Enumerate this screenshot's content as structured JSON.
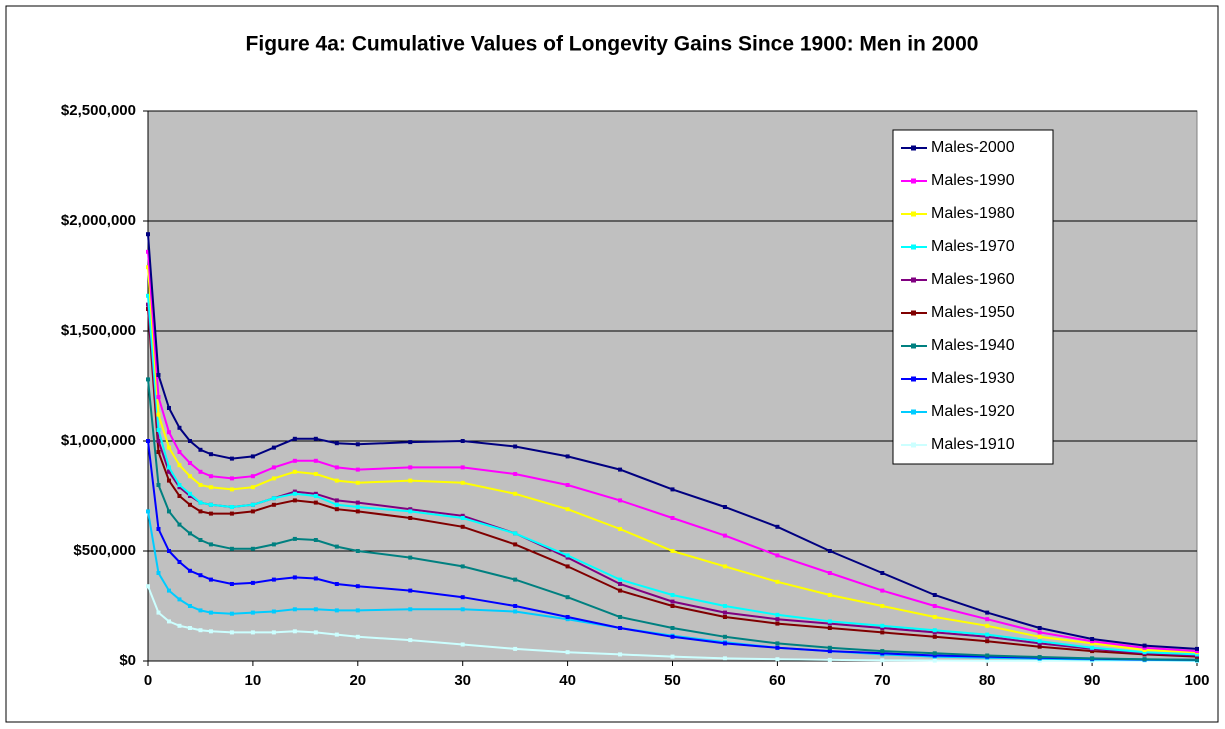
{
  "chart_data": {
    "type": "line",
    "title": "Figure 4a: Cumulative Values of Longevity Gains Since 1900: Men in 2000",
    "x": [
      0,
      1,
      2,
      3,
      4,
      5,
      6,
      8,
      10,
      12,
      14,
      16,
      18,
      20,
      25,
      30,
      35,
      40,
      45,
      50,
      55,
      60,
      65,
      70,
      75,
      80,
      85,
      90,
      95,
      100
    ],
    "xlim": [
      0,
      100
    ],
    "xticks": [
      0,
      10,
      20,
      30,
      40,
      50,
      60,
      70,
      80,
      90,
      100
    ],
    "ylim": [
      0,
      2500000
    ],
    "yticks": [
      {
        "value": 0,
        "label": "$0"
      },
      {
        "value": 500000,
        "label": "$500,000"
      },
      {
        "value": 1000000,
        "label": "$1,000,000"
      },
      {
        "value": 1500000,
        "label": "$1,500,000"
      },
      {
        "value": 2000000,
        "label": "$2,000,000"
      },
      {
        "value": 2500000,
        "label": "$2,500,000"
      }
    ],
    "grid": true,
    "legend": "top-right",
    "series": [
      {
        "name": "Males-2000",
        "color": "#000080",
        "values": [
          1940000,
          1300000,
          1150000,
          1060000,
          1000000,
          960000,
          940000,
          920000,
          930000,
          970000,
          1010000,
          1010000,
          990000,
          985000,
          995000,
          1000000,
          975000,
          930000,
          870000,
          780000,
          700000,
          610000,
          500000,
          400000,
          300000,
          220000,
          150000,
          100000,
          70000,
          55000
        ]
      },
      {
        "name": "Males-1990",
        "color": "#ff00ff",
        "values": [
          1860000,
          1200000,
          1040000,
          950000,
          900000,
          860000,
          840000,
          830000,
          840000,
          880000,
          910000,
          910000,
          880000,
          870000,
          880000,
          880000,
          850000,
          800000,
          730000,
          650000,
          570000,
          480000,
          400000,
          320000,
          250000,
          190000,
          130000,
          90000,
          60000,
          45000
        ]
      },
      {
        "name": "Males-1980",
        "color": "#ffff00",
        "values": [
          1790000,
          1120000,
          970000,
          890000,
          840000,
          800000,
          790000,
          780000,
          790000,
          830000,
          860000,
          850000,
          820000,
          810000,
          820000,
          810000,
          760000,
          690000,
          600000,
          500000,
          430000,
          360000,
          300000,
          250000,
          200000,
          160000,
          110000,
          80000,
          50000,
          40000
        ]
      },
      {
        "name": "Males-1970",
        "color": "#00ffff",
        "values": [
          1660000,
          1050000,
          880000,
          800000,
          760000,
          720000,
          710000,
          700000,
          710000,
          740000,
          760000,
          750000,
          710000,
          700000,
          680000,
          650000,
          580000,
          480000,
          370000,
          300000,
          250000,
          210000,
          180000,
          160000,
          140000,
          120000,
          90000,
          60000,
          40000,
          30000
        ]
      },
      {
        "name": "Males-1960",
        "color": "#800080",
        "values": [
          1620000,
          1000000,
          860000,
          790000,
          750000,
          720000,
          710000,
          700000,
          710000,
          740000,
          770000,
          760000,
          730000,
          720000,
          690000,
          660000,
          580000,
          470000,
          350000,
          270000,
          220000,
          190000,
          170000,
          150000,
          130000,
          110000,
          80000,
          55000,
          35000,
          25000
        ]
      },
      {
        "name": "Males-1950",
        "color": "#800000",
        "values": [
          1600000,
          950000,
          820000,
          750000,
          710000,
          680000,
          670000,
          670000,
          680000,
          710000,
          730000,
          720000,
          690000,
          680000,
          650000,
          610000,
          530000,
          430000,
          320000,
          250000,
          200000,
          170000,
          150000,
          130000,
          110000,
          90000,
          65000,
          45000,
          30000,
          20000
        ]
      },
      {
        "name": "Males-1940",
        "color": "#008080",
        "values": [
          1280000,
          800000,
          680000,
          620000,
          580000,
          550000,
          530000,
          510000,
          510000,
          530000,
          555000,
          550000,
          520000,
          500000,
          470000,
          430000,
          370000,
          290000,
          200000,
          150000,
          110000,
          80000,
          60000,
          45000,
          35000,
          25000,
          18000,
          12000,
          8000,
          5000
        ]
      },
      {
        "name": "Males-1930",
        "color": "#0000ff",
        "values": [
          1000000,
          600000,
          500000,
          450000,
          410000,
          390000,
          370000,
          350000,
          355000,
          370000,
          380000,
          375000,
          350000,
          340000,
          320000,
          290000,
          250000,
          200000,
          150000,
          110000,
          80000,
          60000,
          45000,
          35000,
          25000,
          20000,
          15000,
          10000,
          7000,
          5000
        ]
      },
      {
        "name": "Males-1920",
        "color": "#00ccff",
        "values": [
          680000,
          400000,
          320000,
          280000,
          250000,
          230000,
          220000,
          215000,
          220000,
          225000,
          235000,
          235000,
          230000,
          230000,
          235000,
          235000,
          225000,
          190000,
          150000,
          115000,
          85000,
          60000,
          45000,
          30000,
          20000,
          15000,
          10000,
          7000,
          5000,
          3000
        ]
      },
      {
        "name": "Males-1910",
        "color": "#ccffff",
        "values": [
          340000,
          220000,
          180000,
          160000,
          150000,
          140000,
          135000,
          130000,
          130000,
          130000,
          135000,
          130000,
          120000,
          110000,
          95000,
          75000,
          55000,
          40000,
          30000,
          20000,
          12000,
          8000,
          5000,
          3000,
          2000,
          1000,
          1000,
          500,
          500,
          0
        ]
      }
    ]
  }
}
